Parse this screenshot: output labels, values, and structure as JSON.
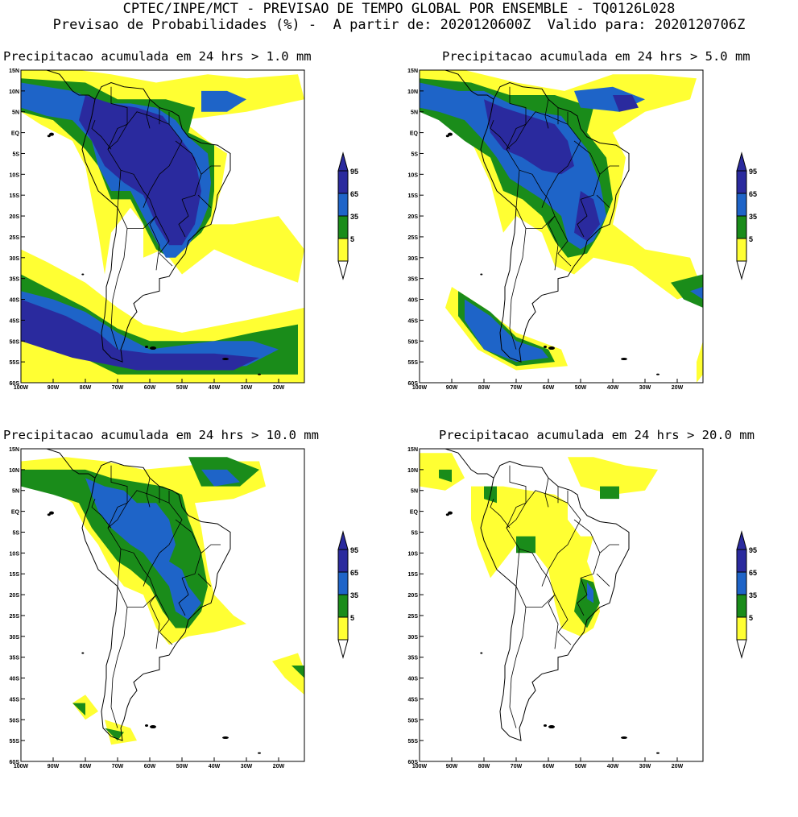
{
  "header": {
    "line1": "CPTEC/INPE/MCT - PREVISAO DE TEMPO GLOBAL POR ENSEMBLE - TQ0126L028",
    "line2": "Previsao de Probabilidades (%) -  A partir de: 2020120600Z  Valido para: 2020120706Z"
  },
  "legend": {
    "labels": [
      "95",
      "65",
      "35",
      "5"
    ],
    "colors": {
      "c95": "#2a2a9e",
      "c65": "#1e64c8",
      "c35": "#1a8c1a",
      "c5": "#ffff33"
    }
  },
  "axes": {
    "lat_labels": [
      "15N",
      "10N",
      "5N",
      "EQ",
      "5S",
      "10S",
      "15S",
      "20S",
      "25S",
      "30S",
      "35S",
      "40S",
      "45S",
      "50S",
      "55S",
      "60S"
    ],
    "lon_labels": [
      "100W",
      "90W",
      "80W",
      "70W",
      "60W",
      "50W",
      "40W",
      "30W",
      "20W"
    ]
  },
  "panels": [
    {
      "title": "Precipitacao acumulada em 24 hrs > 1.0 mm"
    },
    {
      "title": "Precipitacao acumulada em 24 hrs > 5.0 mm"
    },
    {
      "title": "Precipitacao acumulada em 24 hrs > 10.0 mm"
    },
    {
      "title": "Precipitacao acumulada em 24 hrs > 20.0 mm"
    }
  ]
}
